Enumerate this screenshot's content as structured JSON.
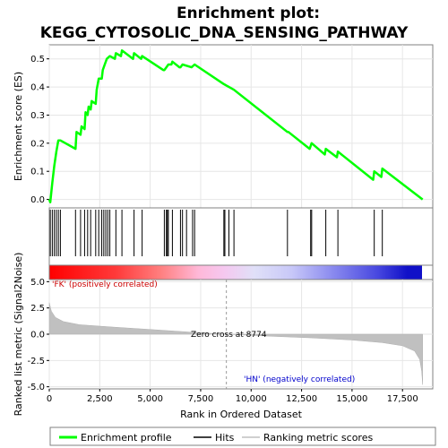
{
  "chart_data": {
    "type": "line",
    "title_line1": "Enrichment plot:",
    "title_line2": "KEGG_CYTOSOLIC_DNA_SENSING_PATHWAY",
    "xlabel": "Rank in Ordered Dataset",
    "ylabel_top": "Enrichment score (ES)",
    "ylabel_bottom": "Ranked list metric (Signal2Noise)",
    "xlim": [
      0,
      19000
    ],
    "x_ticks": [
      0,
      2500,
      5000,
      7500,
      10000,
      12500,
      15000,
      17500
    ],
    "x_tick_labels": [
      "0",
      "2,500",
      "5,000",
      "7,500",
      "10,000",
      "12,500",
      "15,000",
      "17,500"
    ],
    "es_ylim": [
      -0.03,
      0.55
    ],
    "es_ticks": [
      0.0,
      0.1,
      0.2,
      0.3,
      0.4,
      0.5
    ],
    "es_tick_labels": [
      "0.0",
      "0.1",
      "0.2",
      "0.3",
      "0.4",
      "0.5"
    ],
    "metric_ylim": [
      -5.2,
      5.2
    ],
    "metric_ticks": [
      5.0,
      2.5,
      0.0,
      -2.5,
      -5.0
    ],
    "metric_tick_labels": [
      "5.0",
      "2.5",
      "0.0",
      "-2.5",
      "-5.0"
    ],
    "grid": true,
    "zero_cross": 8774,
    "zero_cross_label": "Zero cross at 8774",
    "pos_label": "'FK' (positively correlated)",
    "neg_label": "'HN' (negatively correlated)",
    "legend": {
      "placement": "bottom",
      "items": [
        "Enrichment profile",
        "Hits",
        "Ranking metric scores"
      ]
    },
    "colors": {
      "es_line": "#00ff00",
      "hits": "#000000",
      "metric_fill": "#c0c0c0",
      "pos_text": "#cc0000",
      "neg_text": "#0000cc",
      "zero_line": "#999999"
    },
    "hits": [
      50,
      150,
      250,
      350,
      450,
      550,
      1300,
      1550,
      1750,
      1900,
      2050,
      2300,
      2450,
      2600,
      2700,
      2800,
      2900,
      3000,
      3300,
      3600,
      4200,
      4600,
      5700,
      5800,
      5850,
      5900,
      6100,
      6500,
      6600,
      6800,
      7100,
      7200,
      8650,
      8700,
      8900,
      9150,
      11800,
      12950,
      13000,
      13700,
      14300,
      16100,
      16500
    ],
    "es_points": [
      {
        "x": 0,
        "y": 0.0
      },
      {
        "x": 50,
        "y": -0.01
      },
      {
        "x": 150,
        "y": 0.06
      },
      {
        "x": 250,
        "y": 0.12
      },
      {
        "x": 350,
        "y": 0.17
      },
      {
        "x": 450,
        "y": 0.21
      },
      {
        "x": 550,
        "y": 0.21
      },
      {
        "x": 1300,
        "y": 0.18
      },
      {
        "x": 1350,
        "y": 0.24
      },
      {
        "x": 1550,
        "y": 0.23
      },
      {
        "x": 1600,
        "y": 0.26
      },
      {
        "x": 1750,
        "y": 0.25
      },
      {
        "x": 1800,
        "y": 0.31
      },
      {
        "x": 1900,
        "y": 0.3
      },
      {
        "x": 1950,
        "y": 0.33
      },
      {
        "x": 2050,
        "y": 0.32
      },
      {
        "x": 2100,
        "y": 0.35
      },
      {
        "x": 2300,
        "y": 0.34
      },
      {
        "x": 2350,
        "y": 0.39
      },
      {
        "x": 2450,
        "y": 0.43
      },
      {
        "x": 2600,
        "y": 0.43
      },
      {
        "x": 2650,
        "y": 0.46
      },
      {
        "x": 2750,
        "y": 0.48
      },
      {
        "x": 2850,
        "y": 0.5
      },
      {
        "x": 3000,
        "y": 0.51
      },
      {
        "x": 3250,
        "y": 0.5
      },
      {
        "x": 3300,
        "y": 0.52
      },
      {
        "x": 3550,
        "y": 0.51
      },
      {
        "x": 3600,
        "y": 0.53
      },
      {
        "x": 4150,
        "y": 0.5
      },
      {
        "x": 4200,
        "y": 0.52
      },
      {
        "x": 4550,
        "y": 0.5
      },
      {
        "x": 4600,
        "y": 0.51
      },
      {
        "x": 5650,
        "y": 0.46
      },
      {
        "x": 5700,
        "y": 0.46
      },
      {
        "x": 5800,
        "y": 0.47
      },
      {
        "x": 5900,
        "y": 0.48
      },
      {
        "x": 6050,
        "y": 0.48
      },
      {
        "x": 6100,
        "y": 0.49
      },
      {
        "x": 6450,
        "y": 0.47
      },
      {
        "x": 6500,
        "y": 0.47
      },
      {
        "x": 6600,
        "y": 0.48
      },
      {
        "x": 7050,
        "y": 0.47
      },
      {
        "x": 7200,
        "y": 0.48
      },
      {
        "x": 8650,
        "y": 0.41
      },
      {
        "x": 9150,
        "y": 0.39
      },
      {
        "x": 11800,
        "y": 0.24
      },
      {
        "x": 11850,
        "y": 0.24
      },
      {
        "x": 12900,
        "y": 0.18
      },
      {
        "x": 13000,
        "y": 0.2
      },
      {
        "x": 13650,
        "y": 0.16
      },
      {
        "x": 13700,
        "y": 0.18
      },
      {
        "x": 14250,
        "y": 0.15
      },
      {
        "x": 14300,
        "y": 0.17
      },
      {
        "x": 16050,
        "y": 0.07
      },
      {
        "x": 16100,
        "y": 0.1
      },
      {
        "x": 16450,
        "y": 0.08
      },
      {
        "x": 16500,
        "y": 0.11
      },
      {
        "x": 18500,
        "y": 0.0
      }
    ],
    "metric_points": [
      {
        "x": 0,
        "y": 3.0
      },
      {
        "x": 100,
        "y": 2.2
      },
      {
        "x": 300,
        "y": 1.6
      },
      {
        "x": 700,
        "y": 1.2
      },
      {
        "x": 1500,
        "y": 0.9
      },
      {
        "x": 3000,
        "y": 0.7
      },
      {
        "x": 5000,
        "y": 0.45
      },
      {
        "x": 7000,
        "y": 0.2
      },
      {
        "x": 8774,
        "y": 0.0
      },
      {
        "x": 11000,
        "y": -0.2
      },
      {
        "x": 13000,
        "y": -0.35
      },
      {
        "x": 15000,
        "y": -0.55
      },
      {
        "x": 16500,
        "y": -0.8
      },
      {
        "x": 17500,
        "y": -1.1
      },
      {
        "x": 18100,
        "y": -1.6
      },
      {
        "x": 18350,
        "y": -2.4
      },
      {
        "x": 18450,
        "y": -3.5
      },
      {
        "x": 18500,
        "y": -4.8
      }
    ]
  }
}
